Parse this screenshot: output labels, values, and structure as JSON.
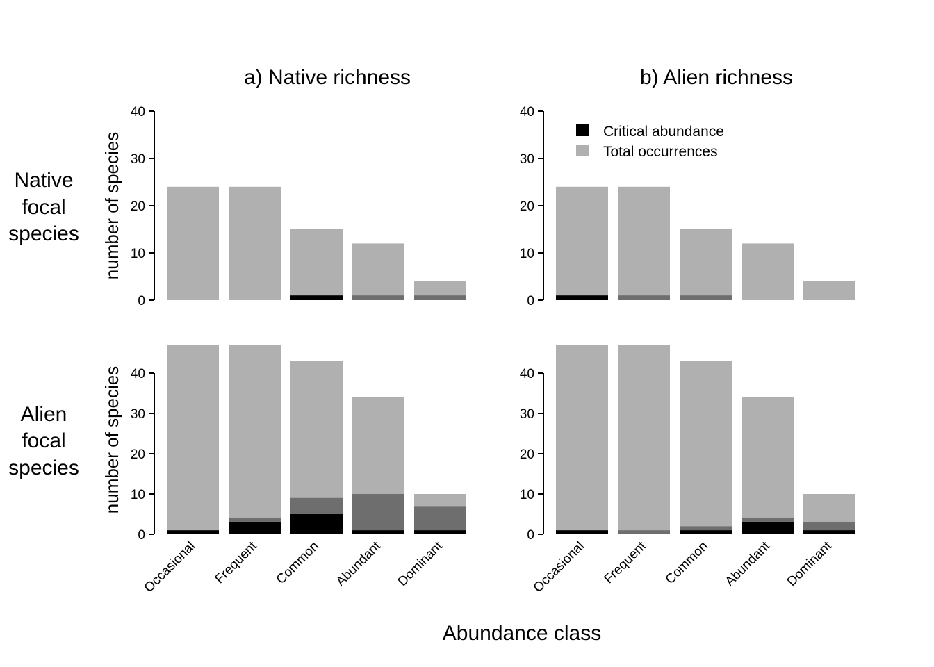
{
  "chart_data": {
    "type": "bar",
    "stacked": true,
    "xlabel": "Abundance class",
    "ylabel": "number of species",
    "categories": [
      "Occasional",
      "Frequent",
      "Common",
      "Abundant",
      "Dominant"
    ],
    "column_titles": [
      "a) Native richness",
      "b) Alien richness"
    ],
    "row_labels": [
      [
        "Native",
        "focal",
        "species"
      ],
      [
        "Alien",
        "focal",
        "species"
      ]
    ],
    "legend": {
      "placement": "top-left of top-right panel",
      "entries": [
        {
          "name": "Critical abundance",
          "color": "#000000"
        },
        {
          "name": "Total occurrences",
          "color": "#b0b0b0"
        }
      ]
    },
    "colors": {
      "total": "#b0b0b0",
      "mid": "#6e6e6e",
      "critical": "#000000"
    },
    "panels": [
      {
        "id": "native-focal-native-richness",
        "row": 0,
        "col": 0,
        "ylim": [
          0,
          40
        ],
        "yticks": [
          0,
          10,
          20,
          30,
          40
        ],
        "total": [
          24,
          24,
          15,
          12,
          4
        ],
        "mid": [
          0,
          0,
          0,
          1,
          1
        ],
        "critical": [
          0,
          0,
          1,
          0,
          0
        ]
      },
      {
        "id": "native-focal-alien-richness",
        "row": 0,
        "col": 1,
        "ylim": [
          0,
          40
        ],
        "yticks": [
          0,
          10,
          20,
          30,
          40
        ],
        "total": [
          24,
          24,
          15,
          12,
          4
        ],
        "mid": [
          0,
          1,
          1,
          0,
          0
        ],
        "critical": [
          1,
          0,
          0,
          0,
          0
        ]
      },
      {
        "id": "alien-focal-native-richness",
        "row": 1,
        "col": 0,
        "ylim": [
          0,
          47
        ],
        "yticks": [
          0,
          10,
          20,
          30,
          40
        ],
        "total": [
          47,
          47,
          43,
          34,
          10
        ],
        "mid": [
          0,
          4,
          9,
          10,
          7
        ],
        "critical": [
          1,
          3,
          5,
          1,
          1
        ]
      },
      {
        "id": "alien-focal-alien-richness",
        "row": 1,
        "col": 1,
        "ylim": [
          0,
          47
        ],
        "yticks": [
          0,
          10,
          20,
          30,
          40
        ],
        "total": [
          47,
          47,
          43,
          34,
          10
        ],
        "mid": [
          0,
          1,
          2,
          4,
          3
        ],
        "critical": [
          1,
          0,
          1,
          3,
          1
        ]
      }
    ]
  }
}
